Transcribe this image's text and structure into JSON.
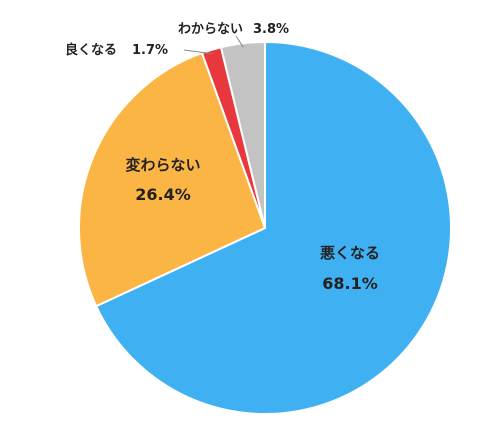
{
  "chart_data": {
    "type": "pie",
    "title": "",
    "slices": [
      {
        "label": "悪くなる",
        "value": 68.1,
        "value_text": "68.1%",
        "color": "#3fb1f3"
      },
      {
        "label": "変わらない",
        "value": 26.4,
        "value_text": "26.4%",
        "color": "#fbb544"
      },
      {
        "label": "良くなる",
        "value": 1.7,
        "value_text": "1.7%",
        "color": "#e8383d"
      },
      {
        "label": "わからない",
        "value": 3.8,
        "value_text": "3.8%",
        "color": "#c3c3c3"
      }
    ],
    "start": "12 o'clock",
    "direction": "clockwise",
    "legend": "none",
    "label_style": "inside for large slices, outside with leader lines for small slices"
  }
}
